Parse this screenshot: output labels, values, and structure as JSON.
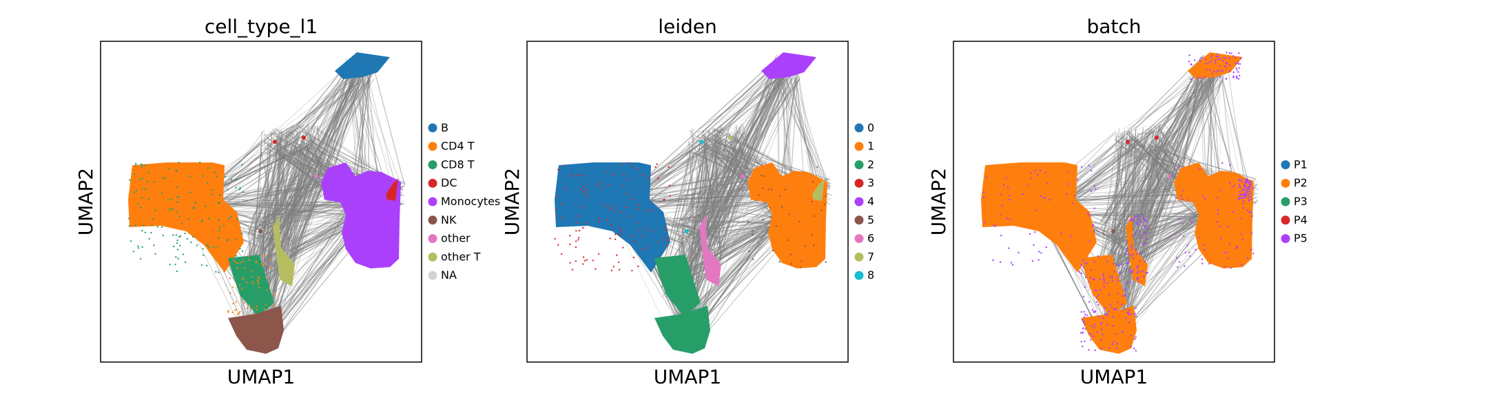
{
  "figure": {
    "panels": [
      {
        "title": "cell_type_l1",
        "xlabel": "UMAP1",
        "ylabel": "UMAP2",
        "legend": [
          {
            "label": "B",
            "color": "#1f77b4"
          },
          {
            "label": "CD4 T",
            "color": "#ff7f0e"
          },
          {
            "label": "CD8 T",
            "color": "#279e68"
          },
          {
            "label": "DC",
            "color": "#d62728"
          },
          {
            "label": "Monocytes",
            "color": "#aa40fc"
          },
          {
            "label": "NK",
            "color": "#8c564b"
          },
          {
            "label": "other",
            "color": "#e377c2"
          },
          {
            "label": "other T",
            "color": "#b5bd61"
          },
          {
            "label": "NA",
            "color": "#d3d3d3"
          }
        ]
      },
      {
        "title": "leiden",
        "xlabel": "UMAP1",
        "ylabel": "UMAP2",
        "legend": [
          {
            "label": "0",
            "color": "#1f77b4"
          },
          {
            "label": "1",
            "color": "#ff7f0e"
          },
          {
            "label": "2",
            "color": "#279e68"
          },
          {
            "label": "3",
            "color": "#d62728"
          },
          {
            "label": "4",
            "color": "#aa40fc"
          },
          {
            "label": "5",
            "color": "#8c564b"
          },
          {
            "label": "6",
            "color": "#e377c2"
          },
          {
            "label": "7",
            "color": "#b5bd61"
          },
          {
            "label": "8",
            "color": "#17becf"
          }
        ]
      },
      {
        "title": "batch",
        "xlabel": "UMAP1",
        "ylabel": "UMAP2",
        "legend": [
          {
            "label": "P1",
            "color": "#1f77b4"
          },
          {
            "label": "P2",
            "color": "#ff7f0e"
          },
          {
            "label": "P3",
            "color": "#279e68"
          },
          {
            "label": "P4",
            "color": "#d62728"
          },
          {
            "label": "P5",
            "color": "#aa40fc"
          }
        ]
      }
    ]
  },
  "chart_data": [
    {
      "type": "scatter",
      "title": "cell_type_l1",
      "xlabel": "UMAP1",
      "ylabel": "UMAP2",
      "ticks": "none",
      "grid": false,
      "overlay": "PAGA graph edges (gray)",
      "legend_placement": "right",
      "categories": [
        "B",
        "CD4 T",
        "CD8 T",
        "DC",
        "Monocytes",
        "NK",
        "other",
        "other T",
        "NA"
      ],
      "colors": [
        "#1f77b4",
        "#ff7f0e",
        "#279e68",
        "#d62728",
        "#aa40fc",
        "#8c564b",
        "#e377c2",
        "#b5bd61",
        "#d3d3d3"
      ]
    },
    {
      "type": "scatter",
      "title": "leiden",
      "xlabel": "UMAP1",
      "ylabel": "UMAP2",
      "ticks": "none",
      "grid": false,
      "overlay": "PAGA graph edges (gray)",
      "legend_placement": "right",
      "categories": [
        "0",
        "1",
        "2",
        "3",
        "4",
        "5",
        "6",
        "7",
        "8"
      ],
      "colors": [
        "#1f77b4",
        "#ff7f0e",
        "#279e68",
        "#d62728",
        "#aa40fc",
        "#8c564b",
        "#e377c2",
        "#b5bd61",
        "#17becf"
      ]
    },
    {
      "type": "scatter",
      "title": "batch",
      "xlabel": "UMAP1",
      "ylabel": "UMAP2",
      "ticks": "none",
      "grid": false,
      "overlay": "PAGA graph edges (gray)",
      "legend_placement": "right",
      "categories": [
        "P1",
        "P2",
        "P3",
        "P4",
        "P5"
      ],
      "colors": [
        "#1f77b4",
        "#ff7f0e",
        "#279e68",
        "#d62728",
        "#aa40fc"
      ]
    }
  ]
}
